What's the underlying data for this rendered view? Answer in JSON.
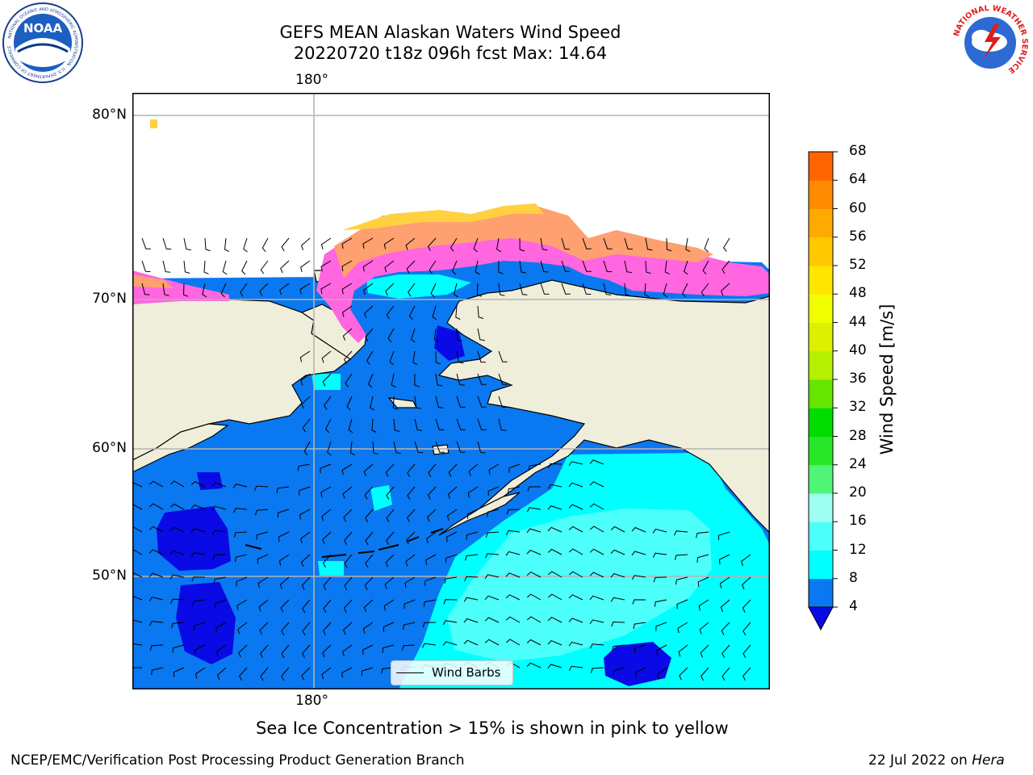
{
  "header": {
    "title_line1": "GEFS MEAN Alaskan Waters Wind Speed",
    "title_line2": "20220720 t18z 096h fcst   Max: 14.64"
  },
  "logos": {
    "noaa": {
      "name": "noaa-logo",
      "text": "NOAA",
      "ring_text": "NATIONAL OCEANIC AND ATMOSPHERIC ADMINISTRATION · U.S. DEPARTMENT OF COMMERCE"
    },
    "nws": {
      "name": "nws-logo",
      "ring_text": "NATIONAL WEATHER SERVICE"
    }
  },
  "map": {
    "lat_labels": [
      "80°N",
      "70°N",
      "60°N",
      "50°N"
    ],
    "lon_label_top": "180°",
    "lon_label_bottom": "180°",
    "legend_label": "Wind Barbs",
    "caption": "Sea Ice Concentration > 15% is shown in pink to yellow",
    "colors": {
      "land": "#efeedb",
      "wind_4_8": "#0a78f0",
      "wind_8_12": "#00ffff",
      "wind_12_16": "#4dfffa",
      "wind_below_4": "#0a0ae6",
      "sea_ice_low": "#ff66e0",
      "sea_ice_mid": "#ffa070",
      "sea_ice_high": "#ffd040",
      "gridline": "#b4b4b4",
      "barb": "#000000"
    }
  },
  "colorbar": {
    "label": "Wind Speed [m/s]",
    "ticks": [
      "68",
      "64",
      "60",
      "56",
      "52",
      "48",
      "44",
      "40",
      "36",
      "32",
      "28",
      "24",
      "20",
      "16",
      "12",
      "8",
      "4"
    ],
    "colors_bottom_to_top": [
      "#0a78f0",
      "#00ffff",
      "#4dfffa",
      "#9cfff2",
      "#50f577",
      "#28e628",
      "#00dc00",
      "#64e600",
      "#b4f000",
      "#dcf000",
      "#f0ff00",
      "#ffe600",
      "#ffc800",
      "#ffaa00",
      "#ff8c00",
      "#ff6400",
      "#ff3200",
      "#ff0000"
    ],
    "under_color": "#0a0ae6"
  },
  "footer": {
    "left": "NCEP/EMC/Verification Post Processing Product Generation Branch",
    "right_prefix": "22 Jul 2022 on ",
    "right_host": "Hera"
  }
}
